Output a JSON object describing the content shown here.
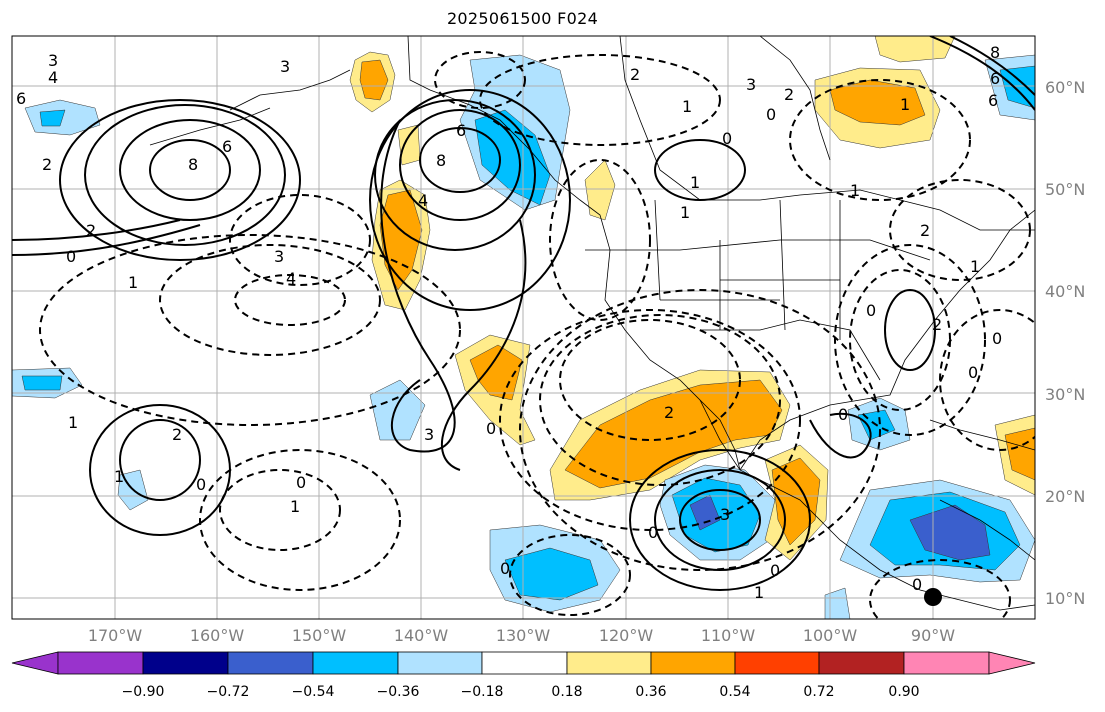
{
  "title": "2025061500 F024",
  "lat_labels": [
    "60°N",
    "50°N",
    "40°N",
    "30°N",
    "20°N",
    "10°N"
  ],
  "lon_labels": [
    "170°W",
    "160°W",
    "150°W",
    "140°W",
    "130°W",
    "120°W",
    "110°W",
    "100°W",
    "90°W"
  ],
  "colorbar": {
    "colors": [
      "#9933cc",
      "#00008b",
      "#3a5fcd",
      "#00bfff",
      "#b0e2ff",
      "#ffffff",
      "#ffec8b",
      "#ffa500",
      "#ff4000",
      "#b22222",
      "#ff85b4"
    ],
    "tick_labels": [
      "−0.90",
      "−0.72",
      "−0.54",
      "−0.36",
      "−0.18",
      "0.18",
      "0.36",
      "0.54",
      "0.72",
      "0.90"
    ]
  },
  "contour_labels": [
    {
      "text": "3"
    },
    {
      "text": "4"
    },
    {
      "text": "6"
    },
    {
      "text": "2"
    },
    {
      "text": "8"
    },
    {
      "text": "6"
    },
    {
      "text": "2"
    },
    {
      "text": "0"
    },
    {
      "text": "3"
    },
    {
      "text": "4"
    },
    {
      "text": "1"
    },
    {
      "text": "8"
    },
    {
      "text": "6"
    },
    {
      "text": "4"
    },
    {
      "text": "3"
    },
    {
      "text": "1"
    },
    {
      "text": "0"
    },
    {
      "text": "1"
    },
    {
      "text": "2"
    },
    {
      "text": "1"
    },
    {
      "text": "1"
    },
    {
      "text": "2"
    },
    {
      "text": "0"
    },
    {
      "text": "2"
    },
    {
      "text": "3"
    },
    {
      "text": "3"
    },
    {
      "text": "0"
    },
    {
      "text": "1"
    },
    {
      "text": "0"
    },
    {
      "text": "0"
    },
    {
      "text": "1"
    },
    {
      "text": "0"
    },
    {
      "text": "0"
    },
    {
      "text": "2"
    },
    {
      "text": "1"
    },
    {
      "text": "6"
    },
    {
      "text": "8"
    },
    {
      "text": "6"
    },
    {
      "text": "2"
    },
    {
      "text": "0"
    },
    {
      "text": "0"
    },
    {
      "text": "2"
    },
    {
      "text": "1"
    },
    {
      "text": "0"
    },
    {
      "text": "1"
    },
    {
      "text": "0"
    },
    {
      "text": "3"
    },
    {
      "text": "0"
    },
    {
      "text": "0"
    },
    {
      "text": "1"
    }
  ],
  "marker": "black-dot"
}
